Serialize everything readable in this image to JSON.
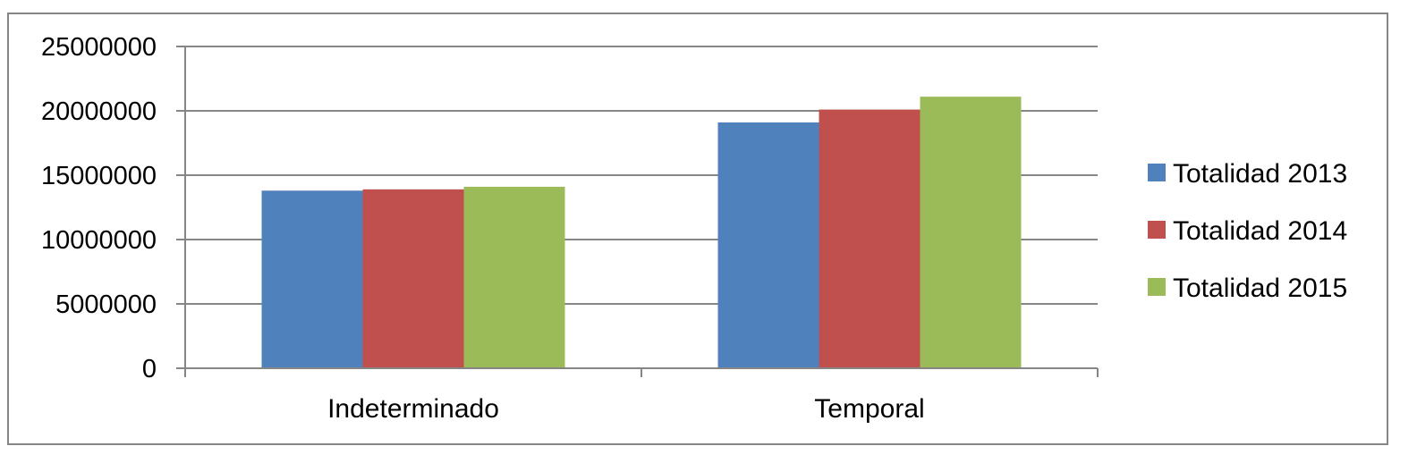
{
  "chart_data": {
    "type": "bar",
    "title": "",
    "xlabel": "",
    "ylabel": "",
    "categories": [
      "Indeterminado",
      "Temporal"
    ],
    "series": [
      {
        "name": "Totalidad 2013",
        "color": "#4F81BD",
        "values": [
          13800000,
          19100000
        ]
      },
      {
        "name": "Totalidad 2014",
        "color": "#C0504D",
        "values": [
          13900000,
          20100000
        ]
      },
      {
        "name": "Totalidad 2015",
        "color": "#9BBB59",
        "values": [
          14100000,
          21100000
        ]
      }
    ],
    "ylim": [
      0,
      25000000
    ],
    "yticks": [
      0,
      5000000,
      10000000,
      15000000,
      20000000,
      25000000
    ],
    "ytick_labels": [
      "0",
      "5000000",
      "10000000",
      "15000000",
      "20000000",
      "25000000"
    ],
    "grid": true,
    "legend_position": "right"
  }
}
